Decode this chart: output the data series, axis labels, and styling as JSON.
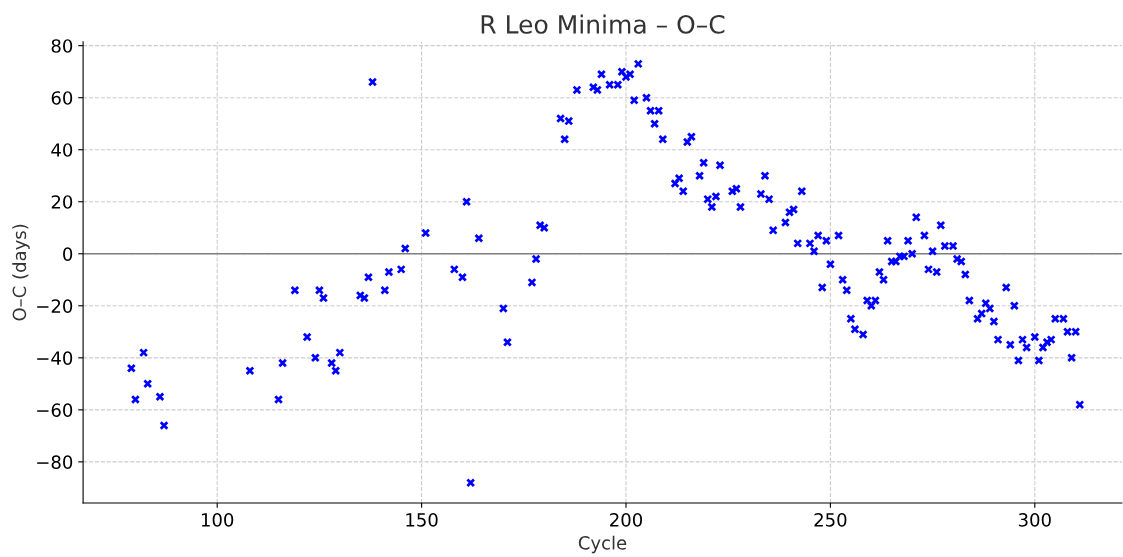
{
  "chart_data": {
    "type": "scatter",
    "title": "R Leo Minima – O–C",
    "xlabel": "Cycle",
    "ylabel": "O–C (days)",
    "x": [
      79,
      80,
      82,
      83,
      86,
      87,
      108,
      115,
      116,
      119,
      122,
      124,
      125,
      126,
      128,
      129,
      130,
      135,
      136,
      137,
      138,
      141,
      142,
      145,
      146,
      151,
      158,
      160,
      161,
      162,
      164,
      170,
      171,
      177,
      178,
      179,
      180,
      184,
      185,
      186,
      188,
      192,
      193,
      194,
      196,
      198,
      199,
      200,
      201,
      202,
      203,
      205,
      206,
      207,
      208,
      209,
      212,
      213,
      214,
      215,
      216,
      218,
      219,
      220,
      221,
      222,
      223,
      226,
      227,
      228,
      233,
      234,
      235,
      236,
      239,
      240,
      241,
      242,
      243,
      245,
      246,
      247,
      248,
      249,
      250,
      252,
      253,
      254,
      255,
      256,
      258,
      259,
      260,
      261,
      262,
      263,
      264,
      265,
      266,
      267,
      268,
      269,
      270,
      271,
      273,
      274,
      275,
      276,
      277,
      278,
      280,
      281,
      282,
      283,
      284,
      286,
      287,
      288,
      289,
      290,
      291,
      293,
      294,
      295,
      296,
      297,
      298,
      300,
      301,
      302,
      303,
      304,
      305,
      307,
      308,
      309,
      310,
      311
    ],
    "series": [
      {
        "color": "#0000ff",
        "values": [
          -44,
          -56,
          -38,
          -50,
          -55,
          -66,
          -45,
          -56,
          -42,
          -14,
          -32,
          -40,
          -14,
          -17,
          -42,
          -45,
          -38,
          -16,
          -17,
          -9,
          66,
          -14,
          -7,
          -6,
          2,
          8,
          -6,
          -9,
          20,
          -88,
          6,
          -21,
          -34,
          -11,
          -2,
          11,
          10,
          52,
          44,
          51,
          63,
          64,
          63,
          69,
          65,
          65,
          70,
          68,
          69,
          59,
          73,
          60,
          55,
          50,
          55,
          44,
          27,
          29,
          24,
          43,
          45,
          30,
          35,
          21,
          18,
          22,
          34,
          24,
          25,
          18,
          23,
          30,
          21,
          9,
          12,
          16,
          17,
          4,
          24,
          4,
          1,
          7,
          -13,
          5,
          -4,
          7,
          -10,
          -14,
          -25,
          -29,
          -31,
          -18,
          -20,
          -18,
          -7,
          -10,
          5,
          -3,
          -3,
          -1,
          -1,
          5,
          0,
          14,
          7,
          -6,
          1,
          -7,
          11,
          3,
          3,
          -2,
          -3,
          -8,
          -18,
          -25,
          -23,
          -19,
          -21,
          -26,
          -33,
          -13,
          -35,
          -20,
          -41,
          -33,
          -36,
          -32,
          -41,
          -36,
          -34,
          -33,
          -25,
          -25,
          -30,
          -40,
          -30,
          -58
        ]
      }
    ],
    "xlim": [
      67.2,
      321.3
    ],
    "xticks": [
      100,
      150,
      200,
      250,
      300
    ],
    "ylim": [
      -95.8,
      81.5
    ],
    "yticks": [
      {
        "value": -80,
        "label": "−80"
      },
      {
        "value": -60,
        "label": "−60"
      },
      {
        "value": -40,
        "label": "−40"
      },
      {
        "value": -20,
        "label": "−20"
      },
      0,
      20,
      40,
      60,
      80
    ],
    "ref_lines": [
      {
        "axis": "y",
        "value": 0,
        "color": "#808080"
      }
    ],
    "grid": true,
    "marker": "cross"
  }
}
